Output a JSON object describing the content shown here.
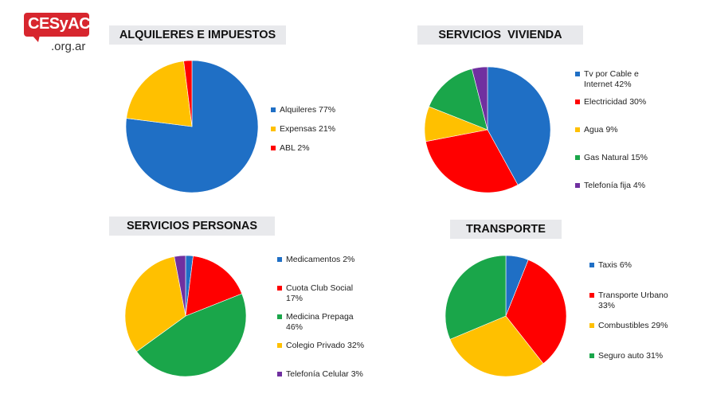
{
  "logo": {
    "main": "CESyAC",
    "sub": ".org.ar"
  },
  "colors": {
    "blue": "#1f6fc5",
    "orange": "#ffc000",
    "red": "#ff0000",
    "green": "#1aa64a",
    "purple": "#7030a0",
    "title_bg": "#e8e9ec",
    "logo_red": "#d7262e"
  },
  "chart_data": [
    {
      "type": "pie",
      "title": "ALQUILERES E IMPUESTOS",
      "slices": [
        {
          "label": "Alquileres 77%",
          "value": 77,
          "color": "#1f6fc5"
        },
        {
          "label": "Expensas 21%",
          "value": 21,
          "color": "#ffc000"
        },
        {
          "label": "ABL 2%",
          "value": 2,
          "color": "#ff0000"
        }
      ]
    },
    {
      "type": "pie",
      "title": "SERVICIOS  VIVIENDA",
      "slices": [
        {
          "label": "Tv por Cable e Internet 42%",
          "value": 42,
          "color": "#1f6fc5"
        },
        {
          "label": "Electricidad 30%",
          "value": 30,
          "color": "#ff0000"
        },
        {
          "label": "Agua 9%",
          "value": 9,
          "color": "#ffc000"
        },
        {
          "label": "Gas Natural 15%",
          "value": 15,
          "color": "#1aa64a"
        },
        {
          "label": "Telefonía fija 4%",
          "value": 4,
          "color": "#7030a0"
        }
      ]
    },
    {
      "type": "pie",
      "title": "SERVICIOS PERSONAS",
      "slices": [
        {
          "label": "Medicamentos 2%",
          "value": 2,
          "color": "#1f6fc5"
        },
        {
          "label": "Cuota Club Social 17%",
          "value": 17,
          "color": "#ff0000"
        },
        {
          "label": "Medicina Prepaga 46%",
          "value": 46,
          "color": "#1aa64a"
        },
        {
          "label": "Colegio Privado 32%",
          "value": 32,
          "color": "#ffc000"
        },
        {
          "label": "Telefonía Celular 3%",
          "value": 3,
          "color": "#7030a0"
        }
      ]
    },
    {
      "type": "pie",
      "title": "TRANSPORTE",
      "slices": [
        {
          "label": "Taxis 6%",
          "value": 6,
          "color": "#1f6fc5"
        },
        {
          "label": "Transporte Urbano 33%",
          "value": 33,
          "color": "#ff0000"
        },
        {
          "label": "Combustibles 29%",
          "value": 29,
          "color": "#ffc000"
        },
        {
          "label": "Seguro auto 31%",
          "value": 31,
          "color": "#1aa64a"
        }
      ]
    }
  ]
}
